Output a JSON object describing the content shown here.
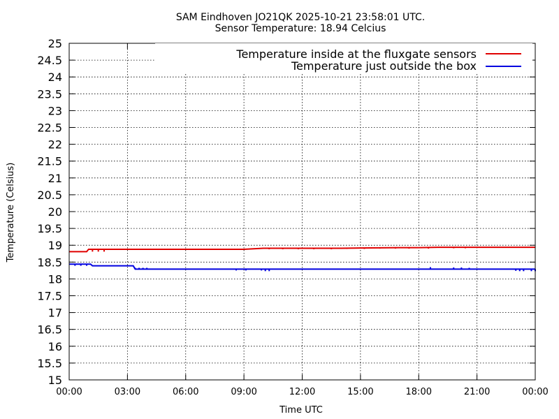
{
  "chart_data": {
    "type": "line",
    "title": "SAM Eindhoven JO21QK 2025-10-21 23:58:01 UTC.",
    "subtitle": "Sensor Temperature: 18.94 Celcius",
    "xlabel": "Time UTC",
    "ylabel": "Temperature (Celsius)",
    "xlim": [
      0,
      24
    ],
    "ylim": [
      15,
      25
    ],
    "x_ticks": [
      0,
      3,
      6,
      9,
      12,
      15,
      18,
      21,
      24
    ],
    "x_tick_labels": [
      "00:00",
      "03:00",
      "06:00",
      "09:00",
      "12:00",
      "15:00",
      "18:00",
      "21:00",
      "00:00"
    ],
    "y_ticks": [
      15,
      15.5,
      16,
      16.5,
      17,
      17.5,
      18,
      18.5,
      19,
      19.5,
      20,
      20.5,
      21,
      21.5,
      22,
      22.5,
      23,
      23.5,
      24,
      24.5,
      25
    ],
    "y_tick_labels": [
      "15",
      "15.5",
      "16",
      "16.5",
      "17",
      "17.5",
      "18",
      "18.5",
      "19",
      "19.5",
      "20",
      "20.5",
      "21",
      "21.5",
      "22",
      "22.5",
      "23",
      "23.5",
      "24",
      "24.5",
      "25"
    ],
    "grid": true,
    "legend_position": "top-right",
    "series": [
      {
        "name": "Temperature inside at the fluxgate sensors",
        "color": "#e00000",
        "x": [
          0,
          0.9,
          1.0,
          1.8,
          2.0,
          4.0,
          6.0,
          7.0,
          8.0,
          9.0,
          10.0,
          12.0,
          14.0,
          15.0,
          17.0,
          18.0,
          19.0,
          20.0,
          22.0,
          24.0
        ],
        "y": [
          18.81,
          18.81,
          18.88,
          18.88,
          18.88,
          18.88,
          18.88,
          18.88,
          18.88,
          18.88,
          18.91,
          18.91,
          18.91,
          18.92,
          18.93,
          18.93,
          18.94,
          18.94,
          18.94,
          18.94
        ],
        "dips": [
          [
            0.9,
            18.81
          ],
          [
            1.2,
            18.81
          ],
          [
            1.5,
            18.81
          ],
          [
            1.8,
            18.81
          ],
          [
            7.2,
            18.88
          ],
          [
            8.0,
            18.88
          ],
          [
            9.5,
            18.88
          ],
          [
            10.3,
            18.88
          ],
          [
            11.0,
            18.88
          ],
          [
            11.8,
            18.88
          ],
          [
            12.6,
            18.88
          ],
          [
            13.5,
            18.88
          ],
          [
            14.3,
            18.89
          ],
          [
            15.2,
            18.89
          ],
          [
            16.0,
            18.9
          ],
          [
            16.8,
            18.9
          ],
          [
            17.5,
            18.9
          ],
          [
            18.5,
            18.9
          ],
          [
            19.8,
            18.91
          ],
          [
            20.4,
            18.91
          ]
        ]
      },
      {
        "name": "Temperature just outside the box",
        "color": "#0000e0",
        "x": [
          0,
          1.1,
          1.2,
          3.3,
          3.4,
          24
        ],
        "y": [
          18.44,
          18.44,
          18.39,
          18.39,
          18.29,
          18.29
        ],
        "dips": [
          [
            0.3,
            18.39
          ],
          [
            0.6,
            18.39
          ],
          [
            0.9,
            18.39
          ],
          [
            3.4,
            18.33
          ],
          [
            3.6,
            18.33
          ],
          [
            3.8,
            18.33
          ],
          [
            4.0,
            18.33
          ],
          [
            8.6,
            18.25
          ],
          [
            9.1,
            18.25
          ],
          [
            9.9,
            18.25
          ],
          [
            10.1,
            18.23
          ],
          [
            10.3,
            18.23
          ],
          [
            23.0,
            18.24
          ],
          [
            23.2,
            18.23
          ],
          [
            23.4,
            18.23
          ],
          [
            23.8,
            18.23
          ],
          [
            24.0,
            18.23
          ]
        ],
        "spikes": [
          [
            18.6,
            18.35
          ],
          [
            19.8,
            18.34
          ],
          [
            20.2,
            18.34
          ],
          [
            20.6,
            18.33
          ]
        ]
      }
    ]
  }
}
